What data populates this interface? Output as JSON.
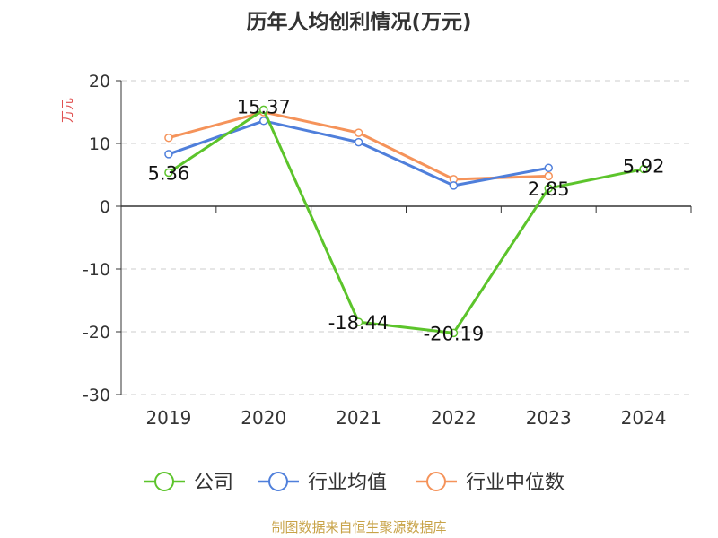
{
  "chart_data": {
    "type": "line",
    "title": "历年人均创利情况(万元)",
    "ylabel": "万元",
    "categories": [
      "2019",
      "2020",
      "2021",
      "2022",
      "2023",
      "2024"
    ],
    "ylim": [
      -30,
      20
    ],
    "yticks": [
      20,
      10,
      0,
      -10,
      -20,
      -30
    ],
    "grid": true,
    "legend_position": "bottom",
    "series": [
      {
        "name": "公司",
        "color": "#5cc42b",
        "values": [
          5.36,
          15.37,
          -18.44,
          -20.19,
          2.85,
          5.92
        ],
        "labeled": true
      },
      {
        "name": "行业均值",
        "color": "#4f7fdb",
        "values": [
          8.3,
          13.6,
          10.2,
          3.3,
          6.1,
          null
        ],
        "labeled": false
      },
      {
        "name": "行业中位数",
        "color": "#f5935a",
        "values": [
          10.9,
          15.0,
          11.7,
          4.3,
          4.8,
          null
        ],
        "labeled": false
      }
    ]
  },
  "footer": "制图数据来自恒生聚源数据库"
}
